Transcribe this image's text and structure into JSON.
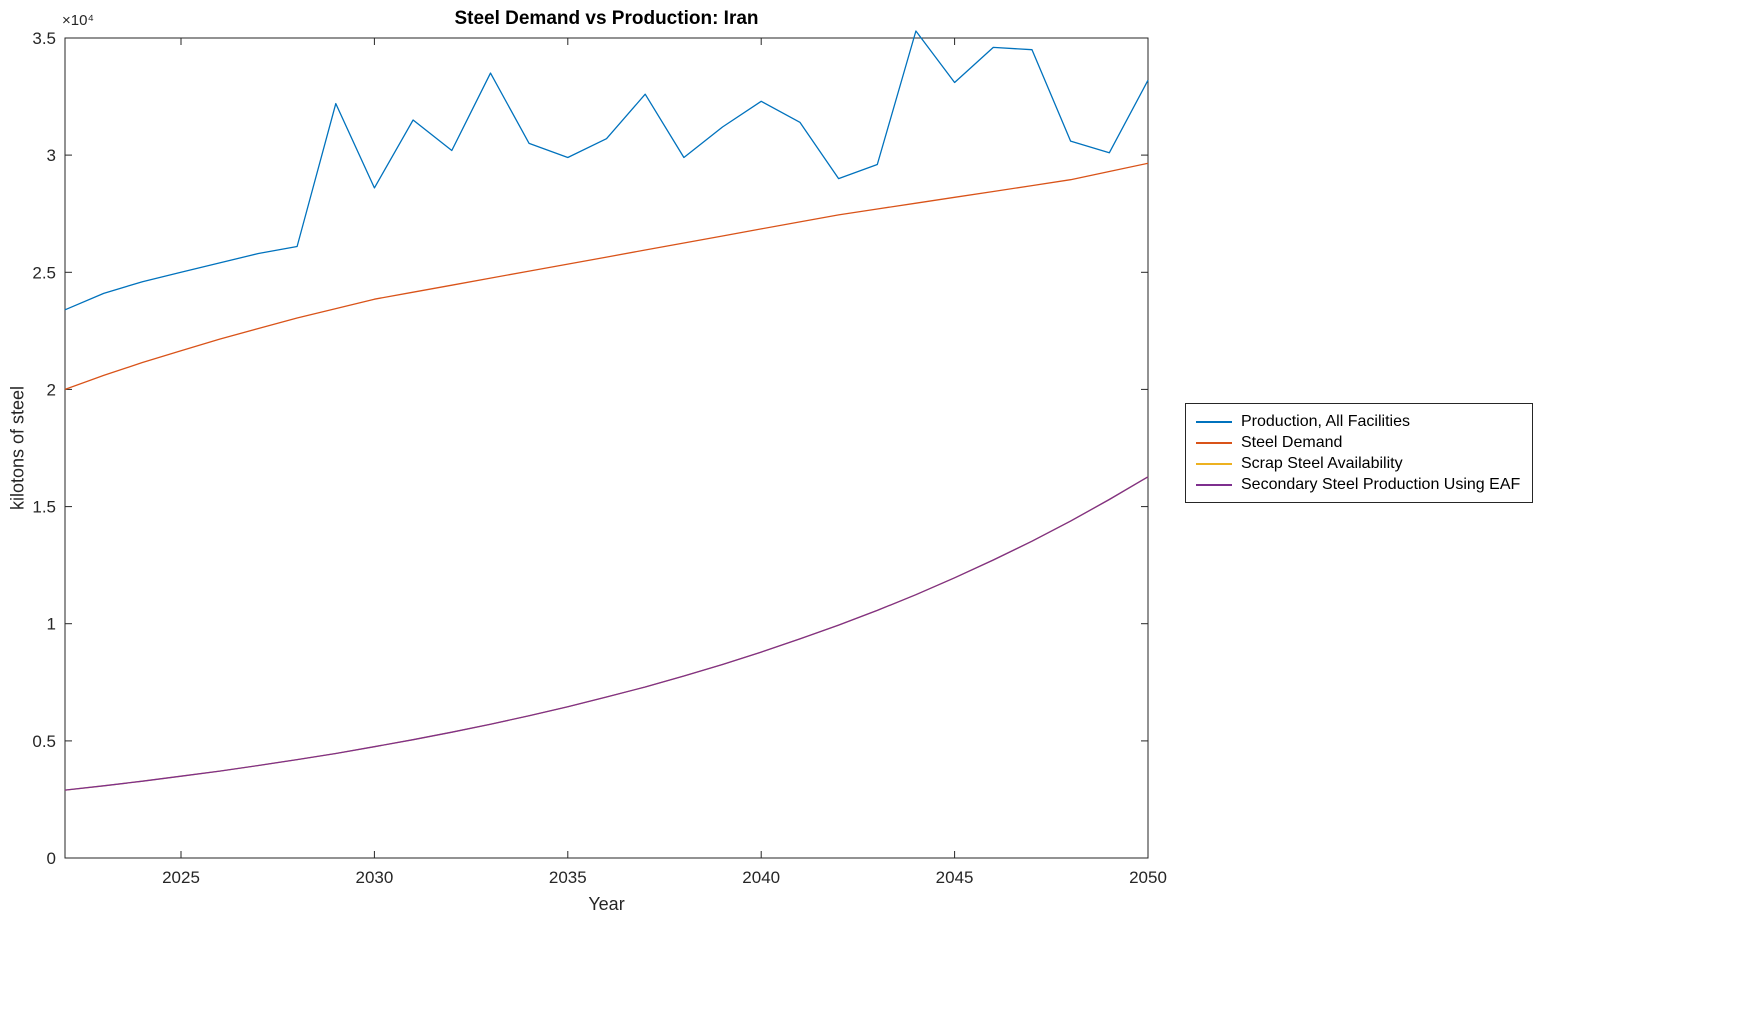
{
  "figure": {
    "background": "#ffffff",
    "axis_color": "#262626"
  },
  "chart_data": {
    "type": "line",
    "title": "Steel Demand vs Production: Iran",
    "xlabel": "Year",
    "ylabel": "kilotons of steel",
    "y_multiplier_label": "×10⁴",
    "grid": false,
    "legend_position": "right-outside",
    "xlim": [
      2022,
      2050
    ],
    "ylim": [
      0,
      35000
    ],
    "xticks": [
      2025,
      2030,
      2035,
      2040,
      2045,
      2050
    ],
    "xtick_labels": [
      "2025",
      "2030",
      "2035",
      "2040",
      "2045",
      "2050"
    ],
    "yticks": [
      0,
      5000,
      10000,
      15000,
      20000,
      25000,
      30000,
      35000
    ],
    "ytick_labels": [
      "0",
      "0.5",
      "1",
      "1.5",
      "2",
      "2.5",
      "3",
      "3.5"
    ],
    "x": [
      2022,
      2023,
      2024,
      2025,
      2026,
      2027,
      2028,
      2029,
      2030,
      2031,
      2032,
      2033,
      2034,
      2035,
      2036,
      2037,
      2038,
      2039,
      2040,
      2041,
      2042,
      2043,
      2044,
      2045,
      2046,
      2047,
      2048,
      2049,
      2050
    ],
    "series": [
      {
        "name": "Production, All Facilities",
        "color": "#0072BD",
        "values": [
          23400,
          24100,
          24600,
          25000,
          25400,
          25800,
          26100,
          32200,
          28600,
          31500,
          30200,
          33500,
          30500,
          29900,
          30700,
          32600,
          29900,
          31200,
          32300,
          31400,
          29000,
          29600,
          35300,
          33100,
          34600,
          34500,
          30600,
          30100,
          33200
        ]
      },
      {
        "name": "Steel Demand",
        "color": "#D95319",
        "values": [
          20000,
          20600,
          21150,
          21650,
          22150,
          22600,
          23050,
          23450,
          23850,
          24150,
          24450,
          24750,
          25050,
          25350,
          25650,
          25950,
          26250,
          26550,
          26850,
          27150,
          27450,
          27700,
          27950,
          28200,
          28450,
          28700,
          28950,
          29300,
          29650
        ]
      },
      {
        "name": "Scrap Steel Availability",
        "color": "#EDB120",
        "values": [
          2900,
          3080,
          3280,
          3490,
          3710,
          3950,
          4200,
          4460,
          4750,
          5050,
          5370,
          5710,
          6070,
          6460,
          6870,
          7300,
          7770,
          8260,
          8790,
          9350,
          9940,
          10570,
          11240,
          11960,
          12720,
          13520,
          14380,
          15300,
          16270
        ]
      },
      {
        "name": "Secondary Steel Production Using EAF",
        "color": "#7E2F8E",
        "values": [
          2900,
          3080,
          3280,
          3490,
          3710,
          3950,
          4200,
          4460,
          4750,
          5050,
          5370,
          5710,
          6070,
          6460,
          6870,
          7300,
          7770,
          8260,
          8790,
          9350,
          9940,
          10570,
          11240,
          11960,
          12720,
          13520,
          14380,
          15300,
          16270
        ]
      }
    ]
  }
}
